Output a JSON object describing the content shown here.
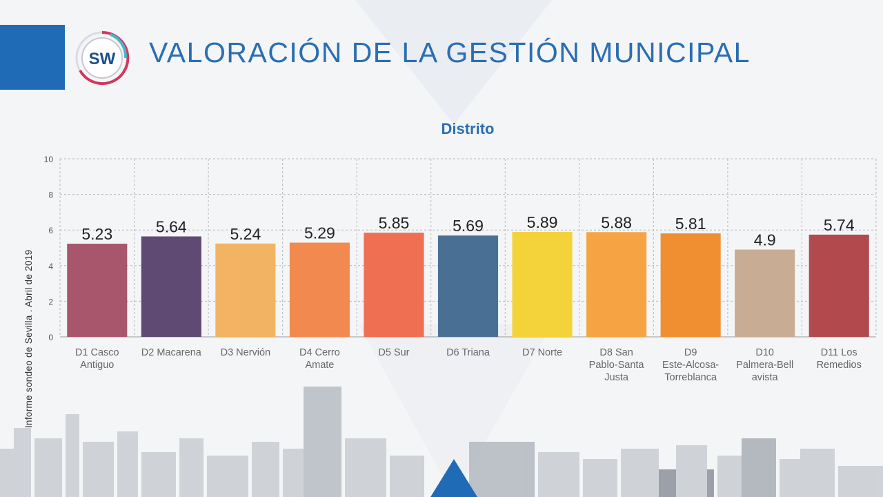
{
  "header": {
    "title": "VALORACIÓN DE LA GESTIÓN MUNICIPAL",
    "logo_text": "SW",
    "accent_color": "#1f6bb5"
  },
  "side_note": "Informe sondeo de Sevilla . Abril de 2019",
  "chart_data": {
    "type": "bar",
    "title": "Distrito",
    "xlabel": "",
    "ylabel": "",
    "ylim": [
      0,
      10
    ],
    "yticks": [
      0,
      2,
      4,
      6,
      8,
      10
    ],
    "grid": true,
    "legend": "none",
    "categories": [
      [
        "D1 Casco",
        "Antiguo"
      ],
      [
        "D2 Macarena"
      ],
      [
        "D3 Nervión"
      ],
      [
        "D4 Cerro",
        "Amate"
      ],
      [
        "D5 Sur"
      ],
      [
        "D6 Triana"
      ],
      [
        "D7 Norte"
      ],
      [
        "D8 San",
        "Pablo-Santa",
        "Justa"
      ],
      [
        "D9",
        "Este-Alcosa-",
        "Torreblanca"
      ],
      [
        "D10",
        "Palmera-Bell",
        "avista"
      ],
      [
        "D11 Los",
        "Remedios"
      ]
    ],
    "values": [
      5.23,
      5.64,
      5.24,
      5.29,
      5.85,
      5.69,
      5.89,
      5.88,
      5.81,
      4.9,
      5.74
    ],
    "value_labels": [
      "5.23",
      "5.64",
      "5.24",
      "5.29",
      "5.85",
      "5.69",
      "5.89",
      "5.88",
      "5.81",
      "4.9",
      "5.74"
    ],
    "colors": [
      "#a7566c",
      "#5e4a72",
      "#f2b463",
      "#f28a4f",
      "#ee6f52",
      "#4a6f95",
      "#f4d33a",
      "#f6a443",
      "#f08f32",
      "#c9ac94",
      "#b24a4d"
    ]
  }
}
